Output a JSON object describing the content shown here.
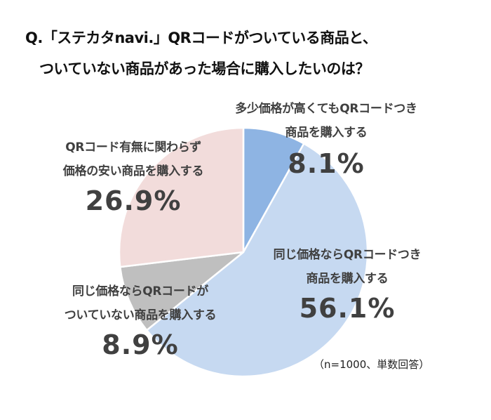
{
  "title": {
    "line1": "Q.「ステカタnavi.」QRコードがついている商品と、",
    "line2": "ついていない商品があった場合に購入したいのは？"
  },
  "note": "（n=1000、単数回答）",
  "colors": {
    "slice_0": "#8EB4E3",
    "slice_1": "#C6D9F1",
    "slice_2": "#BFBFBF",
    "slice_3": "#F2DCDB",
    "text": "#404040",
    "border": "#ffffff"
  },
  "labels": [
    {
      "line1": "多少価格が高くてもQRコードつき",
      "line2": "商品を購入する",
      "pct": "8.1%"
    },
    {
      "line1": "同じ価格ならQRコードつき",
      "line2": "商品を購入する",
      "pct": "56.1%"
    },
    {
      "line1": "同じ価格ならQRコードが",
      "line2": "ついていない商品を購入する",
      "pct": "8.9%"
    },
    {
      "line1": "QRコード有無に関わらず",
      "line2": "価格の安い商品を購入する",
      "pct": "26.9%"
    }
  ],
  "chart_data": {
    "type": "pie",
    "title": "Q.「ステカタnavi.」QRコードがついている商品と、ついていない商品があった場合に購入したいのは？",
    "categories": [
      "多少価格が高くてもQRコードつき商品を購入する",
      "同じ価格ならQRコードつき商品を購入する",
      "同じ価格ならQRコードがついていない商品を購入する",
      "QRコード有無に関わらず価格の安い商品を購入する"
    ],
    "values": [
      8.1,
      56.1,
      8.9,
      26.9
    ],
    "unit": "%",
    "start_angle": "12 o'clock",
    "direction": "clockwise",
    "annotation": "（n=1000、単数回答）",
    "legend": "none (data labels)"
  }
}
